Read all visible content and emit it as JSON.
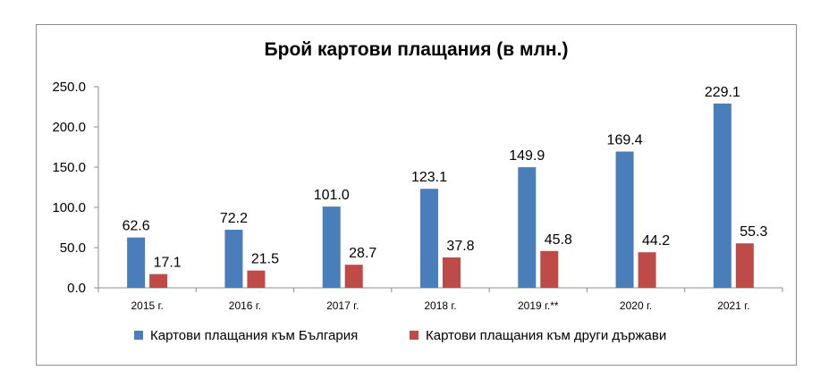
{
  "chart_data": {
    "type": "bar",
    "title": "Брой картови плащания (в млн.)",
    "categories": [
      "2015 г.",
      "2016 г.",
      "2017 г.",
      "2018 г.",
      "2019 г.**",
      "2020 г.",
      "2021 г."
    ],
    "series": [
      {
        "name": "Картови плащания към България",
        "color": "#4a7ebb",
        "values": [
          62.6,
          72.2,
          101.0,
          123.1,
          149.9,
          169.4,
          229.1
        ],
        "labels": [
          "62.6",
          "72.2",
          "101.0",
          "123.1",
          "149.9",
          "169.4",
          "229.1"
        ]
      },
      {
        "name": "Картови плащания към други държави",
        "color": "#be4b48",
        "values": [
          17.1,
          21.5,
          28.7,
          37.8,
          45.8,
          44.2,
          55.3
        ],
        "labels": [
          "17.1",
          "21.5",
          "28.7",
          "37.8",
          "45.8",
          "44.2",
          "55.3"
        ]
      }
    ],
    "ylim": [
      0,
      250
    ],
    "yticks": [
      "0.0",
      "50.0",
      "100.0",
      "150.0",
      "200.0",
      "250.0"
    ],
    "grid": false,
    "legend": "bottom"
  }
}
